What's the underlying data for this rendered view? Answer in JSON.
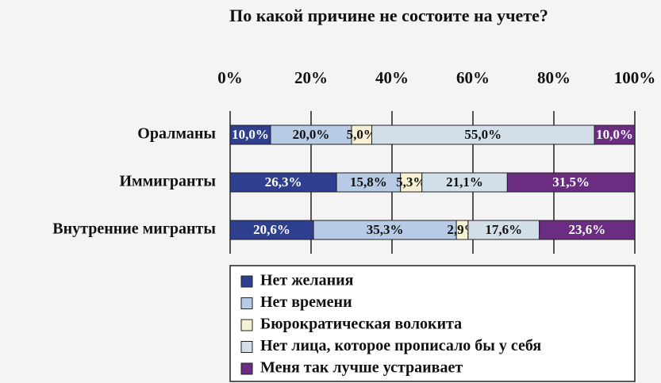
{
  "chart_data": {
    "type": "stacked-barh",
    "title": "По какой причине не состоите на учете?",
    "categories": [
      "Оралманы",
      "Иммигранты",
      "Внутренние мигранты"
    ],
    "series": [
      {
        "name": "Нет желания",
        "color": "#2f3f8f",
        "values": [
          10.0,
          26.3,
          20.6
        ],
        "value_labels": [
          "10,0%",
          "26,3%",
          "20,6%"
        ]
      },
      {
        "name": "Нет времени",
        "color": "#b7cbe6",
        "values": [
          20.0,
          15.8,
          35.3
        ],
        "value_labels": [
          "20,0%",
          "15,8%",
          "35,3%"
        ]
      },
      {
        "name": "Бюрократическая волокита",
        "color": "#f6f1d2",
        "values": [
          5.0,
          5.3,
          2.9
        ],
        "value_labels": [
          "5,0%",
          "5,3%",
          "2,9%"
        ]
      },
      {
        "name": "Нет лица, которое прописало бы у себя",
        "color": "#d3dfe8",
        "values": [
          55.0,
          21.1,
          17.6
        ],
        "value_labels": [
          "55,0%",
          "21,1%",
          "17,6%"
        ]
      },
      {
        "name": "Меня так лучше устраивает",
        "color": "#6b2d82",
        "values": [
          10.0,
          31.5,
          23.6
        ],
        "value_labels": [
          "10,0%",
          "31,5%",
          "23,6%"
        ]
      }
    ],
    "xlim": [
      0,
      100
    ],
    "xticks": [
      {
        "value": 0,
        "label": "0%"
      },
      {
        "value": 20,
        "label": "20%"
      },
      {
        "value": 40,
        "label": "40%"
      },
      {
        "value": 60,
        "label": "60%"
      },
      {
        "value": 80,
        "label": "80%"
      },
      {
        "value": 100,
        "label": "100%"
      }
    ],
    "grid": true
  }
}
